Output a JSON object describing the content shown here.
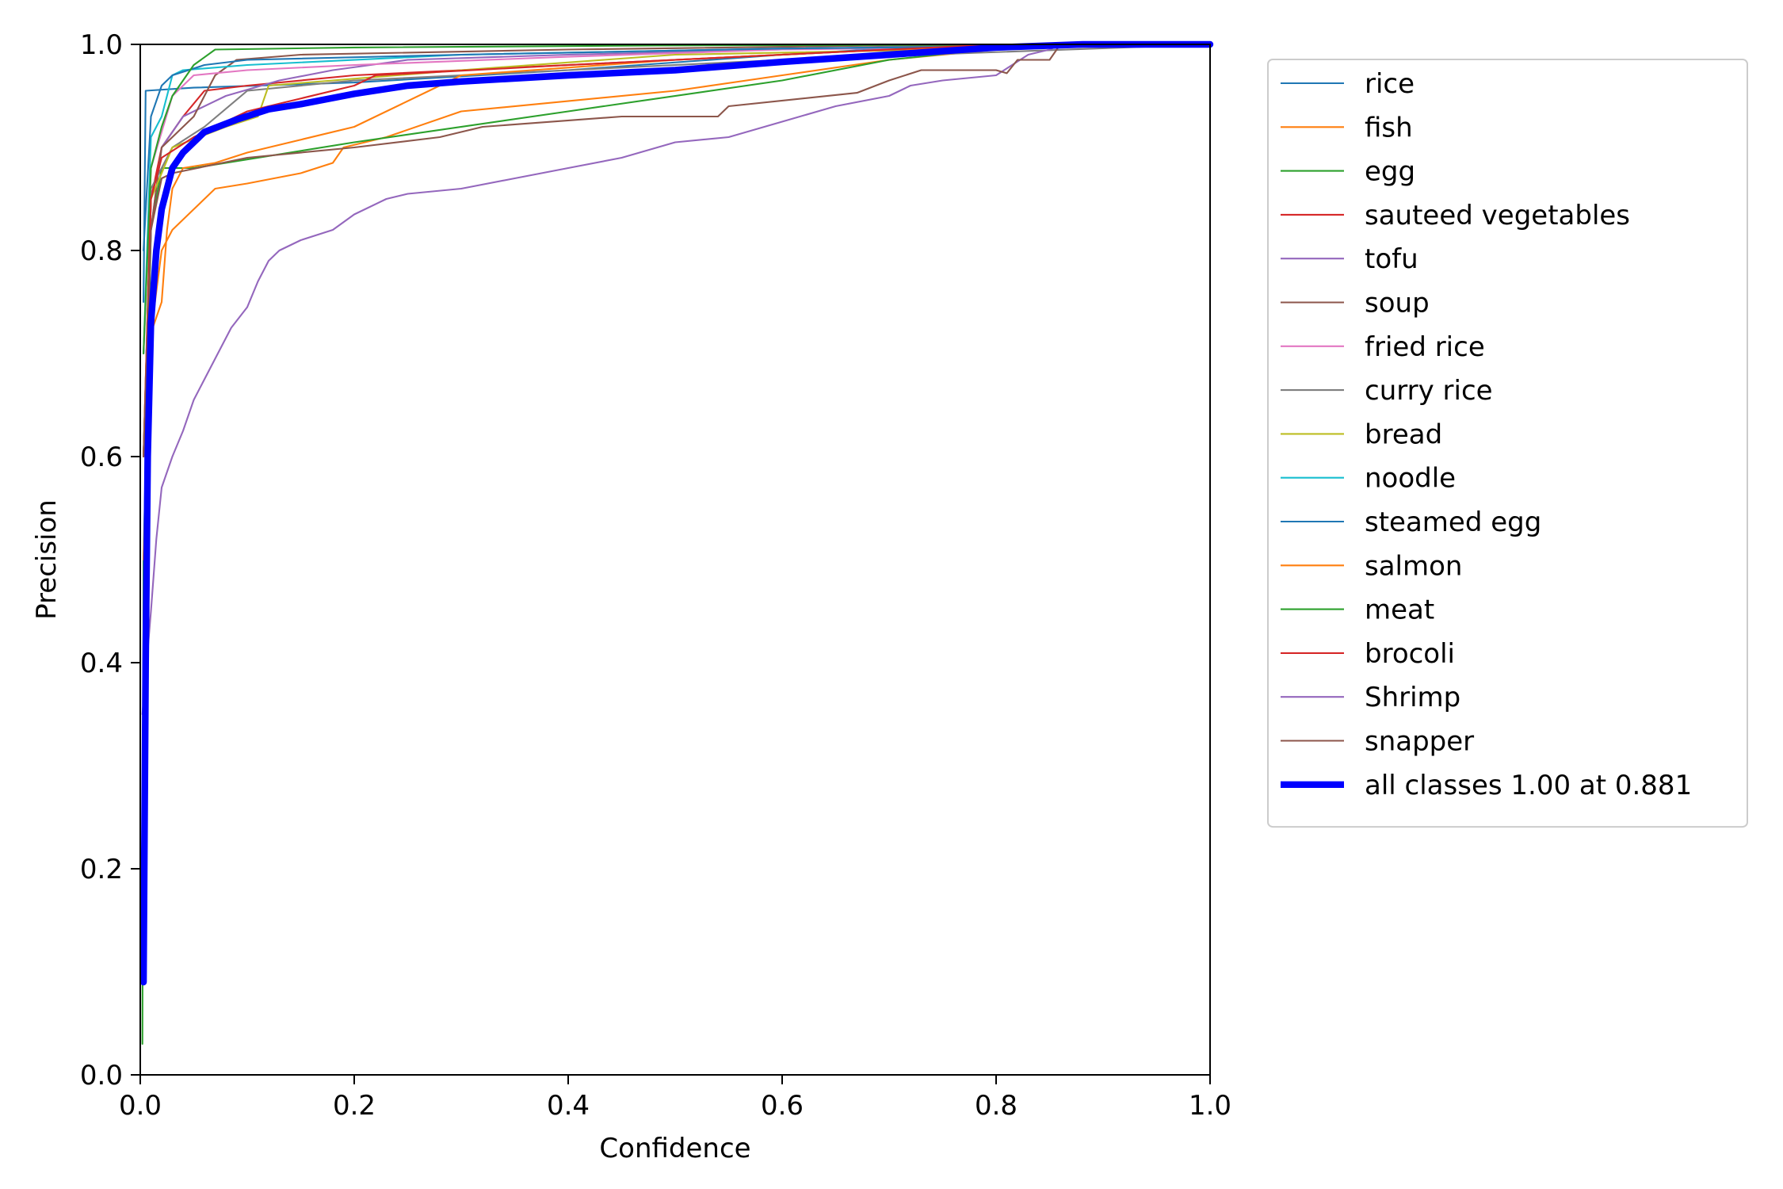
{
  "chart_data": {
    "type": "line",
    "title": "",
    "xlabel": "Confidence",
    "ylabel": "Precision",
    "xlim": [
      0,
      1
    ],
    "ylim": [
      0,
      1
    ],
    "x_ticks": [
      "0.0",
      "0.2",
      "0.4",
      "0.6",
      "0.8",
      "1.0"
    ],
    "y_ticks": [
      "0.0",
      "0.2",
      "0.4",
      "0.6",
      "0.8",
      "1.0"
    ],
    "grid": false,
    "legend_position": "outside-right",
    "series": [
      {
        "name": "rice",
        "color": "#1f77b4",
        "width": 1.5,
        "points": [
          [
            0.003,
            0.75
          ],
          [
            0.005,
            0.955
          ],
          [
            0.05,
            0.958
          ],
          [
            0.2,
            0.963
          ],
          [
            0.4,
            0.975
          ],
          [
            0.6,
            0.99
          ],
          [
            0.7,
            0.996
          ],
          [
            0.85,
            1.0
          ],
          [
            1.0,
            1.0
          ]
        ]
      },
      {
        "name": "fish",
        "color": "#ff7f0e",
        "width": 1.5,
        "points": [
          [
            0.003,
            0.45
          ],
          [
            0.01,
            0.72
          ],
          [
            0.02,
            0.8
          ],
          [
            0.03,
            0.82
          ],
          [
            0.05,
            0.84
          ],
          [
            0.07,
            0.86
          ],
          [
            0.1,
            0.865
          ],
          [
            0.15,
            0.875
          ],
          [
            0.18,
            0.885
          ],
          [
            0.19,
            0.9
          ],
          [
            0.23,
            0.91
          ],
          [
            0.3,
            0.935
          ],
          [
            0.5,
            0.955
          ],
          [
            0.6,
            0.97
          ],
          [
            0.7,
            0.985
          ],
          [
            0.85,
            1.0
          ],
          [
            1.0,
            1.0
          ]
        ]
      },
      {
        "name": "egg",
        "color": "#2ca02c",
        "width": 1.5,
        "points": [
          [
            0.002,
            0.03
          ],
          [
            0.003,
            0.5
          ],
          [
            0.01,
            0.82
          ],
          [
            0.02,
            0.88
          ],
          [
            0.05,
            0.88
          ],
          [
            0.2,
            0.905
          ],
          [
            0.4,
            0.935
          ],
          [
            0.6,
            0.965
          ],
          [
            0.7,
            0.985
          ],
          [
            0.8,
            0.996
          ],
          [
            1.0,
            1.0
          ]
        ]
      },
      {
        "name": "sauteed vegetables",
        "color": "#d62728",
        "width": 1.5,
        "points": [
          [
            0.003,
            0.6
          ],
          [
            0.01,
            0.85
          ],
          [
            0.02,
            0.9
          ],
          [
            0.04,
            0.93
          ],
          [
            0.06,
            0.955
          ],
          [
            0.1,
            0.96
          ],
          [
            0.2,
            0.97
          ],
          [
            0.3,
            0.975
          ],
          [
            0.5,
            0.985
          ],
          [
            0.7,
            0.995
          ],
          [
            0.85,
            1.0
          ],
          [
            1.0,
            1.0
          ]
        ]
      },
      {
        "name": "tofu",
        "color": "#9467bd",
        "width": 1.5,
        "points": [
          [
            0.003,
            0.6
          ],
          [
            0.01,
            0.82
          ],
          [
            0.02,
            0.9
          ],
          [
            0.04,
            0.93
          ],
          [
            0.08,
            0.95
          ],
          [
            0.13,
            0.965
          ],
          [
            0.18,
            0.975
          ],
          [
            0.25,
            0.985
          ],
          [
            0.4,
            0.99
          ],
          [
            0.6,
            0.995
          ],
          [
            0.8,
            1.0
          ],
          [
            1.0,
            1.0
          ]
        ]
      },
      {
        "name": "soup",
        "color": "#8c564b",
        "width": 1.5,
        "points": [
          [
            0.003,
            0.6
          ],
          [
            0.01,
            0.82
          ],
          [
            0.02,
            0.9
          ],
          [
            0.05,
            0.93
          ],
          [
            0.07,
            0.97
          ],
          [
            0.09,
            0.985
          ],
          [
            0.15,
            0.99
          ],
          [
            0.4,
            0.995
          ],
          [
            0.7,
            0.999
          ],
          [
            1.0,
            1.0
          ]
        ]
      },
      {
        "name": "fried rice",
        "color": "#e377c2",
        "width": 1.5,
        "points": [
          [
            0.003,
            0.7
          ],
          [
            0.01,
            0.88
          ],
          [
            0.03,
            0.95
          ],
          [
            0.05,
            0.97
          ],
          [
            0.1,
            0.975
          ],
          [
            0.2,
            0.98
          ],
          [
            0.4,
            0.988
          ],
          [
            0.6,
            0.995
          ],
          [
            1.0,
            1.0
          ]
        ]
      },
      {
        "name": "curry rice",
        "color": "#7f7f7f",
        "width": 1.5,
        "points": [
          [
            0.003,
            0.6
          ],
          [
            0.01,
            0.86
          ],
          [
            0.03,
            0.9
          ],
          [
            0.06,
            0.92
          ],
          [
            0.1,
            0.955
          ],
          [
            0.2,
            0.965
          ],
          [
            0.4,
            0.975
          ],
          [
            0.6,
            0.985
          ],
          [
            1.0,
            1.0
          ]
        ]
      },
      {
        "name": "bread",
        "color": "#bcbd22",
        "width": 1.5,
        "points": [
          [
            0.003,
            0.6
          ],
          [
            0.01,
            0.85
          ],
          [
            0.03,
            0.9
          ],
          [
            0.08,
            0.92
          ],
          [
            0.11,
            0.93
          ],
          [
            0.12,
            0.96
          ],
          [
            0.3,
            0.975
          ],
          [
            0.5,
            0.99
          ],
          [
            1.0,
            1.0
          ]
        ]
      },
      {
        "name": "noodle",
        "color": "#17becf",
        "width": 1.5,
        "points": [
          [
            0.003,
            0.7
          ],
          [
            0.01,
            0.91
          ],
          [
            0.02,
            0.93
          ],
          [
            0.03,
            0.97
          ],
          [
            0.04,
            0.975
          ],
          [
            0.1,
            0.98
          ],
          [
            0.3,
            0.99
          ],
          [
            0.6,
            0.996
          ],
          [
            1.0,
            1.0
          ]
        ]
      },
      {
        "name": "steamed egg",
        "color": "#1f77b4",
        "width": 1.5,
        "points": [
          [
            0.003,
            0.8
          ],
          [
            0.01,
            0.93
          ],
          [
            0.02,
            0.96
          ],
          [
            0.03,
            0.97
          ],
          [
            0.06,
            0.98
          ],
          [
            0.1,
            0.985
          ],
          [
            0.3,
            0.99
          ],
          [
            0.6,
            0.996
          ],
          [
            1.0,
            1.0
          ]
        ]
      },
      {
        "name": "salmon",
        "color": "#ff7f0e",
        "width": 1.5,
        "points": [
          [
            0.003,
            0.5
          ],
          [
            0.01,
            0.72
          ],
          [
            0.02,
            0.75
          ],
          [
            0.025,
            0.82
          ],
          [
            0.03,
            0.86
          ],
          [
            0.04,
            0.88
          ],
          [
            0.07,
            0.885
          ],
          [
            0.1,
            0.895
          ],
          [
            0.2,
            0.92
          ],
          [
            0.3,
            0.97
          ],
          [
            0.5,
            0.985
          ],
          [
            0.7,
            0.995
          ],
          [
            1.0,
            1.0
          ]
        ]
      },
      {
        "name": "meat",
        "color": "#2ca02c",
        "width": 1.5,
        "points": [
          [
            0.003,
            0.7
          ],
          [
            0.01,
            0.88
          ],
          [
            0.02,
            0.92
          ],
          [
            0.03,
            0.95
          ],
          [
            0.05,
            0.98
          ],
          [
            0.07,
            0.995
          ],
          [
            0.2,
            0.997
          ],
          [
            0.5,
            0.999
          ],
          [
            1.0,
            1.0
          ]
        ]
      },
      {
        "name": "brocoli",
        "color": "#d62728",
        "width": 1.5,
        "points": [
          [
            0.003,
            0.6
          ],
          [
            0.01,
            0.85
          ],
          [
            0.02,
            0.89
          ],
          [
            0.05,
            0.91
          ],
          [
            0.1,
            0.935
          ],
          [
            0.2,
            0.96
          ],
          [
            0.22,
            0.97
          ],
          [
            0.4,
            0.98
          ],
          [
            0.6,
            0.99
          ],
          [
            0.8,
            1.0
          ],
          [
            1.0,
            1.0
          ]
        ]
      },
      {
        "name": "Shrimp",
        "color": "#9467bd",
        "width": 1.5,
        "points": [
          [
            0.002,
            0.35
          ],
          [
            0.01,
            0.45
          ],
          [
            0.015,
            0.52
          ],
          [
            0.02,
            0.57
          ],
          [
            0.03,
            0.6
          ],
          [
            0.04,
            0.625
          ],
          [
            0.05,
            0.655
          ],
          [
            0.07,
            0.695
          ],
          [
            0.085,
            0.725
          ],
          [
            0.1,
            0.745
          ],
          [
            0.11,
            0.77
          ],
          [
            0.12,
            0.79
          ],
          [
            0.13,
            0.8
          ],
          [
            0.15,
            0.81
          ],
          [
            0.18,
            0.82
          ],
          [
            0.2,
            0.835
          ],
          [
            0.23,
            0.85
          ],
          [
            0.25,
            0.855
          ],
          [
            0.3,
            0.86
          ],
          [
            0.35,
            0.87
          ],
          [
            0.4,
            0.88
          ],
          [
            0.45,
            0.89
          ],
          [
            0.5,
            0.905
          ],
          [
            0.55,
            0.91
          ],
          [
            0.6,
            0.925
          ],
          [
            0.65,
            0.94
          ],
          [
            0.7,
            0.95
          ],
          [
            0.72,
            0.96
          ],
          [
            0.75,
            0.965
          ],
          [
            0.8,
            0.97
          ],
          [
            0.83,
            0.99
          ],
          [
            0.85,
            0.995
          ],
          [
            0.86,
            1.0
          ],
          [
            1.0,
            1.0
          ]
        ]
      },
      {
        "name": "snapper",
        "color": "#8c564b",
        "width": 1.5,
        "points": [
          [
            0.003,
            0.6
          ],
          [
            0.01,
            0.82
          ],
          [
            0.02,
            0.87
          ],
          [
            0.03,
            0.875
          ],
          [
            0.1,
            0.89
          ],
          [
            0.2,
            0.9
          ],
          [
            0.28,
            0.91
          ],
          [
            0.32,
            0.92
          ],
          [
            0.45,
            0.93
          ],
          [
            0.54,
            0.93
          ],
          [
            0.55,
            0.94
          ],
          [
            0.67,
            0.953
          ],
          [
            0.7,
            0.965
          ],
          [
            0.73,
            0.975
          ],
          [
            0.8,
            0.975
          ],
          [
            0.81,
            0.972
          ],
          [
            0.82,
            0.985
          ],
          [
            0.85,
            0.985
          ],
          [
            0.86,
            1.0
          ],
          [
            1.0,
            1.0
          ]
        ]
      },
      {
        "name": "all classes 1.00 at 0.881",
        "color": "#0000ff",
        "width": 6,
        "points": [
          [
            0.003,
            0.09
          ],
          [
            0.005,
            0.4
          ],
          [
            0.007,
            0.6
          ],
          [
            0.01,
            0.73
          ],
          [
            0.015,
            0.8
          ],
          [
            0.02,
            0.84
          ],
          [
            0.03,
            0.88
          ],
          [
            0.04,
            0.895
          ],
          [
            0.06,
            0.915
          ],
          [
            0.09,
            0.927
          ],
          [
            0.12,
            0.937
          ],
          [
            0.15,
            0.942
          ],
          [
            0.2,
            0.952
          ],
          [
            0.25,
            0.96
          ],
          [
            0.3,
            0.964
          ],
          [
            0.4,
            0.97
          ],
          [
            0.5,
            0.975
          ],
          [
            0.6,
            0.983
          ],
          [
            0.7,
            0.99
          ],
          [
            0.8,
            0.997
          ],
          [
            0.881,
            1.0
          ],
          [
            1.0,
            1.0
          ]
        ]
      }
    ]
  }
}
